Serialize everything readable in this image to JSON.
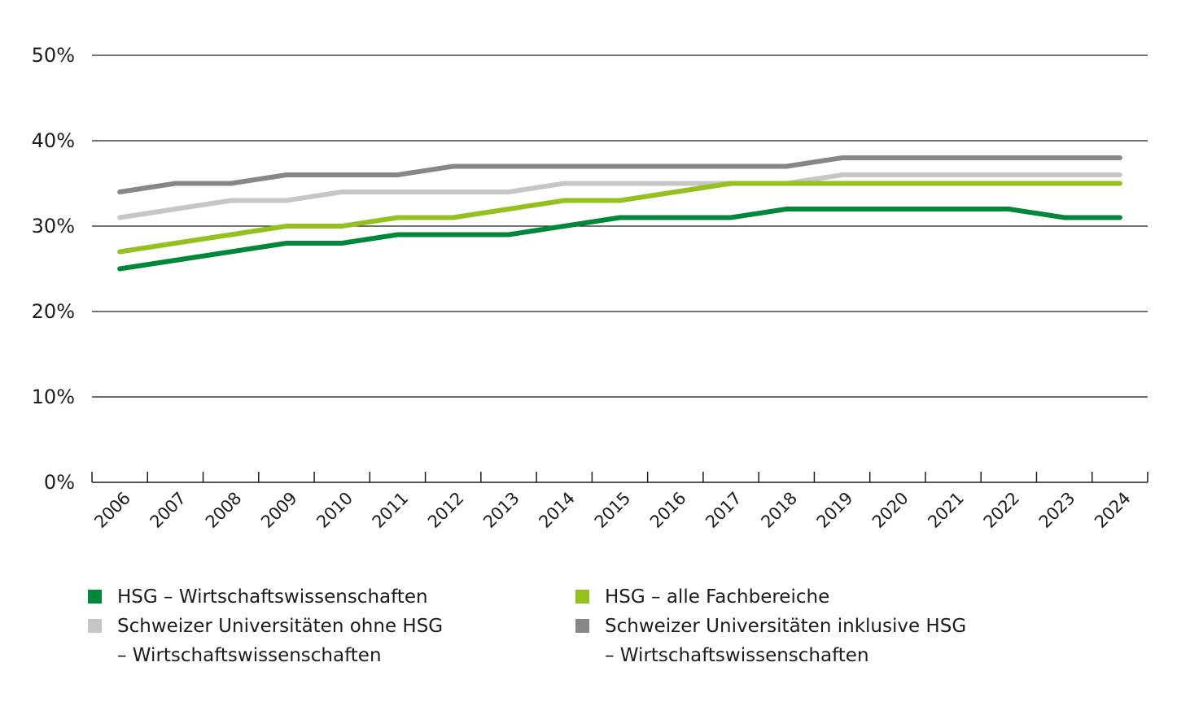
{
  "chart_data": {
    "type": "line",
    "title": "",
    "xlabel": "",
    "ylabel": "",
    "ylim": [
      0,
      50
    ],
    "yticks": [
      0,
      10,
      20,
      30,
      40,
      50
    ],
    "ytick_labels": [
      "0%",
      "10%",
      "20%",
      "30%",
      "40%",
      "50%"
    ],
    "grid": true,
    "legend_position": "bottom",
    "categories": [
      "2006",
      "2007",
      "2008",
      "2009",
      "2010",
      "2011",
      "2012",
      "2013",
      "2014",
      "2015",
      "2016",
      "2017",
      "2018",
      "2019",
      "2020",
      "2021",
      "2022",
      "2023",
      "2024"
    ],
    "series": [
      {
        "name": "HSG – Wirtschaftswissenschaften",
        "legend_lines": [
          "HSG – Wirtschaftswissenschaften"
        ],
        "color": "#00873a",
        "values": [
          25,
          26,
          27,
          28,
          28,
          29,
          29,
          29,
          30,
          31,
          31,
          31,
          32,
          32,
          32,
          32,
          32,
          31,
          31
        ]
      },
      {
        "name": "HSG – alle Fachbereiche",
        "legend_lines": [
          "HSG – alle Fachbereiche"
        ],
        "color": "#95c11f",
        "values": [
          27,
          28,
          29,
          30,
          30,
          31,
          31,
          32,
          33,
          33,
          34,
          35,
          35,
          35,
          35,
          35,
          35,
          35,
          35
        ]
      },
      {
        "name": "Schweizer Universitäten ohne HSG – Wirtschaftswissenschaften",
        "legend_lines": [
          "Schweizer Universitäten ohne HSG",
          "– Wirtschaftswissenschaften"
        ],
        "color": "#c6c6c6",
        "values": [
          31,
          32,
          33,
          33,
          34,
          34,
          34,
          34,
          35,
          35,
          35,
          35,
          35,
          36,
          36,
          36,
          36,
          36,
          36
        ]
      },
      {
        "name": "Schweizer Universitäten inklusive HSG – Wirtschaftswissenschaften",
        "legend_lines": [
          "Schweizer Universitäten inklusive HSG",
          "– Wirtschaftswissenschaften"
        ],
        "color": "#878787",
        "values": [
          34,
          35,
          35,
          36,
          36,
          36,
          37,
          37,
          37,
          37,
          37,
          37,
          37,
          38,
          38,
          38,
          38,
          38,
          38
        ]
      }
    ]
  },
  "colors": {
    "gridline": "#1d1d1b",
    "text": "#1d1d1b"
  }
}
